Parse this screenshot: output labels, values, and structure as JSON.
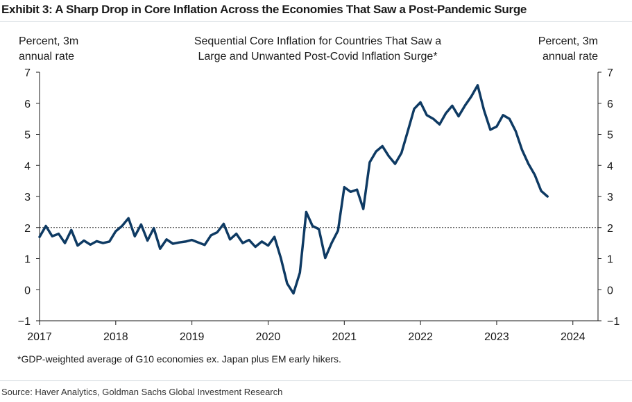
{
  "exhibit_title": "Exhibit 3: A Sharp Drop in Core Inflation Across the Economies That Saw a Post-Pandemic Surge",
  "source": "Source: Haver Analytics, Goldman Sachs Global Investment Research",
  "colors": {
    "line": "#0e3a63",
    "axis": "#1a1a1a",
    "reference": "#333333"
  },
  "chart_data": {
    "type": "line",
    "title_lines": [
      "Sequential Core Inflation for Countries That Saw a",
      "Large and Unwanted Post-Covid Inflation Surge*"
    ],
    "ylabel_left": [
      "Percent, 3m",
      "annual rate"
    ],
    "ylabel_right": [
      "Percent, 3m",
      "annual rate"
    ],
    "footnote": "*GDP-weighted average of G10 economies ex. Japan plus EM early hikers.",
    "xlim": [
      2017,
      2024.33
    ],
    "ylim": [
      -1,
      7
    ],
    "x_ticks": [
      2017,
      2018,
      2019,
      2020,
      2021,
      2022,
      2023,
      2024
    ],
    "y_ticks": [
      -1,
      0,
      1,
      2,
      3,
      4,
      5,
      6,
      7
    ],
    "reference_line": {
      "y": 2,
      "style": "dotted"
    },
    "grid": false,
    "series": [
      {
        "x": [
          2017.0,
          2017.083,
          2017.167,
          2017.25,
          2017.333,
          2017.417,
          2017.5,
          2017.583,
          2017.667,
          2017.75,
          2017.833,
          2017.917,
          2018.0,
          2018.083,
          2018.167,
          2018.25,
          2018.333,
          2018.417,
          2018.5,
          2018.583,
          2018.667,
          2018.75,
          2018.833,
          2018.917,
          2019.0,
          2019.083,
          2019.167,
          2019.25,
          2019.333,
          2019.417,
          2019.5,
          2019.583,
          2019.667,
          2019.75,
          2019.833,
          2019.917,
          2020.0,
          2020.083,
          2020.167,
          2020.25,
          2020.333,
          2020.417,
          2020.5,
          2020.583,
          2020.667,
          2020.75,
          2020.833,
          2020.917,
          2021.0,
          2021.083,
          2021.167,
          2021.25,
          2021.333,
          2021.417,
          2021.5,
          2021.583,
          2021.667,
          2021.75,
          2021.833,
          2021.917,
          2022.0,
          2022.083,
          2022.167,
          2022.25,
          2022.333,
          2022.417,
          2022.5,
          2022.583,
          2022.667,
          2022.75,
          2022.833,
          2022.917,
          2023.0,
          2023.083,
          2023.167,
          2023.25,
          2023.333,
          2023.417,
          2023.5,
          2023.583,
          2023.667
        ],
        "y": [
          1.7,
          2.05,
          1.72,
          1.8,
          1.5,
          1.92,
          1.42,
          1.58,
          1.45,
          1.56,
          1.5,
          1.55,
          1.88,
          2.05,
          2.3,
          1.72,
          2.1,
          1.58,
          1.98,
          1.32,
          1.62,
          1.48,
          1.52,
          1.55,
          1.6,
          1.52,
          1.44,
          1.75,
          1.85,
          2.12,
          1.62,
          1.8,
          1.5,
          1.6,
          1.38,
          1.55,
          1.42,
          1.7,
          1.02,
          0.2,
          -0.12,
          0.55,
          2.5,
          2.05,
          1.95,
          1.02,
          1.5,
          1.9,
          3.3,
          3.15,
          3.22,
          2.6,
          4.1,
          4.45,
          4.62,
          4.3,
          4.05,
          4.4,
          5.1,
          5.82,
          6.03,
          5.62,
          5.5,
          5.32,
          5.68,
          5.92,
          5.58,
          5.92,
          6.22,
          6.58,
          5.78,
          5.15,
          5.25,
          5.62,
          5.5,
          5.1,
          4.5,
          4.05,
          3.7,
          3.18,
          3.0
        ]
      }
    ]
  }
}
